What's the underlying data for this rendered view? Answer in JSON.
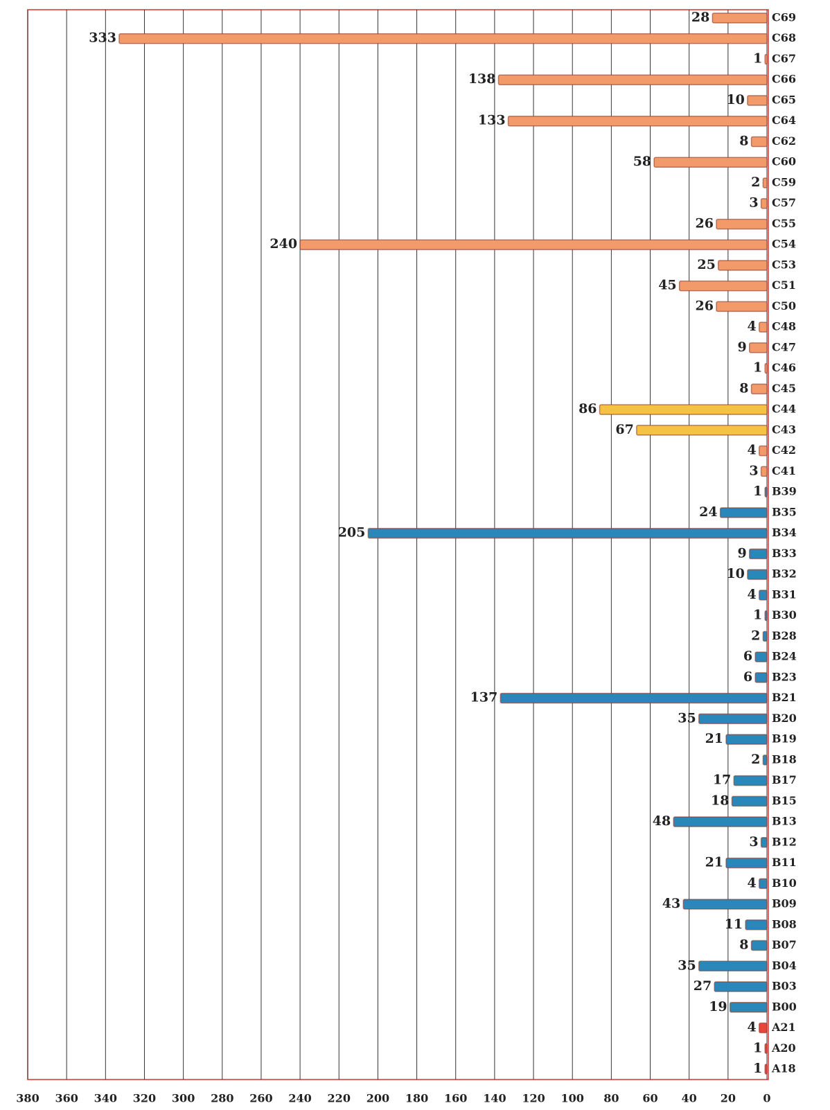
{
  "chart_data": {
    "type": "barh",
    "categories": [
      "C69",
      "C68",
      "C67",
      "C66",
      "C65",
      "C64",
      "C62",
      "C60",
      "C59",
      "C57",
      "C55",
      "C54",
      "C53",
      "C51",
      "C50",
      "C48",
      "C47",
      "C46",
      "C45",
      "C44",
      "C43",
      "C42",
      "C41",
      "B39",
      "B35",
      "B34",
      "B33",
      "B32",
      "B31",
      "B30",
      "B28",
      "B24",
      "B23",
      "B21",
      "B20",
      "B19",
      "B18",
      "B17",
      "B15",
      "B13",
      "B12",
      "B11",
      "B10",
      "B09",
      "B08",
      "B07",
      "B04",
      "B03",
      "B00",
      "A21",
      "A20",
      "A18"
    ],
    "values": [
      28,
      333,
      1,
      138,
      10,
      133,
      8,
      58,
      2,
      3,
      26,
      240,
      25,
      45,
      26,
      4,
      9,
      1,
      8,
      86,
      67,
      4,
      3,
      1,
      24,
      205,
      9,
      10,
      4,
      1,
      2,
      6,
      6,
      137,
      35,
      21,
      2,
      17,
      18,
      48,
      3,
      21,
      4,
      43,
      11,
      8,
      35,
      27,
      19,
      4,
      1,
      1
    ],
    "colors": [
      "#f39a6b",
      "#f39a6b",
      "#f39a6b",
      "#f39a6b",
      "#f39a6b",
      "#f39a6b",
      "#f39a6b",
      "#f39a6b",
      "#f39a6b",
      "#f39a6b",
      "#f39a6b",
      "#f39a6b",
      "#f39a6b",
      "#f39a6b",
      "#f39a6b",
      "#f39a6b",
      "#f39a6b",
      "#f39a6b",
      "#f39a6b",
      "#f5c242",
      "#f5c242",
      "#f39a6b",
      "#f39a6b",
      "#2a87b9",
      "#2a87b9",
      "#2a87b9",
      "#2a87b9",
      "#2a87b9",
      "#2a87b9",
      "#2a87b9",
      "#2a87b9",
      "#2a87b9",
      "#2a87b9",
      "#2a87b9",
      "#2a87b9",
      "#2a87b9",
      "#2a87b9",
      "#2a87b9",
      "#2a87b9",
      "#2a87b9",
      "#2a87b9",
      "#2a87b9",
      "#2a87b9",
      "#2a87b9",
      "#2a87b9",
      "#2a87b9",
      "#2a87b9",
      "#2a87b9",
      "#2a87b9",
      "#e8453c",
      "#e8453c",
      "#e8453c"
    ],
    "xlim": [
      0,
      380
    ],
    "x_reversed": true,
    "xticks": [
      0,
      20,
      40,
      60,
      80,
      100,
      120,
      140,
      160,
      180,
      200,
      220,
      240,
      260,
      280,
      300,
      320,
      340,
      360,
      380
    ],
    "grid": true
  }
}
